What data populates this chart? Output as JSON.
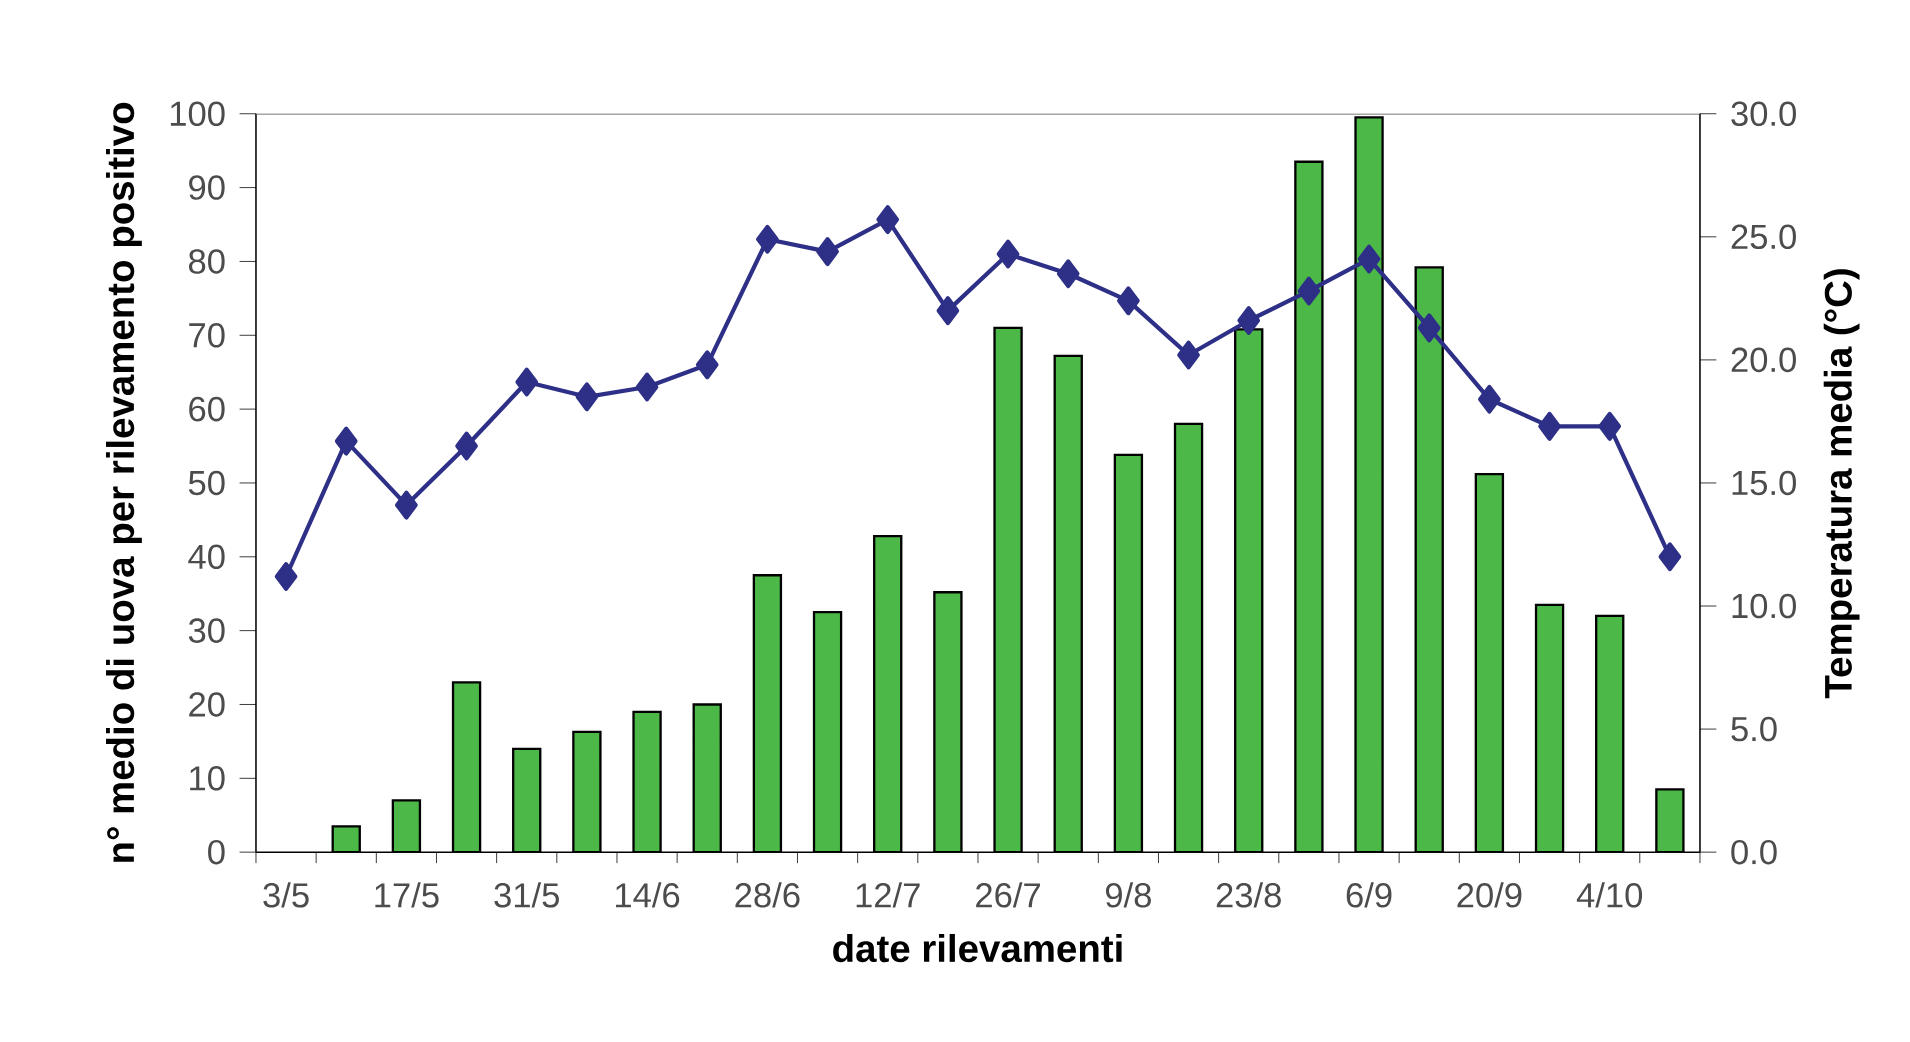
{
  "chart_data": {
    "type": "bar",
    "xlabel": "date rilevamenti",
    "ylabel": "n° medio di uova per rilevamento positivo",
    "y2label": "Temperatura media (°C)",
    "categories": [
      "3/5",
      null,
      "17/5",
      null,
      "31/5",
      null,
      "14/6",
      null,
      "28/6",
      null,
      "12/7",
      null,
      "26/7",
      null,
      "9/8",
      null,
      "23/8",
      null,
      "6/9",
      null,
      "20/9",
      null,
      "4/10",
      null
    ],
    "series": [
      {
        "color": "#4cb848",
        "values": [
          null,
          3.5,
          7,
          23,
          14,
          16.3,
          19,
          20,
          37.5,
          32.5,
          42.8,
          35.2,
          71,
          67.2,
          53.8,
          58,
          70.8,
          93.5,
          99.5,
          79.2,
          51.2,
          33.5,
          32,
          8.5
        ]
      },
      {
        "type": "line",
        "axis": "y2",
        "color": "#2e2f86",
        "marker": "diamond",
        "values": [
          11.2,
          16.7,
          14.1,
          16.5,
          19.1,
          18.5,
          18.9,
          19.8,
          24.9,
          24.4,
          25.7,
          22.0,
          24.3,
          23.5,
          22.4,
          20.2,
          21.6,
          22.8,
          24.1,
          21.3,
          18.4,
          17.3,
          17.3,
          12.0
        ]
      }
    ],
    "ylim": [
      0,
      100
    ],
    "yticks": [
      0,
      10,
      20,
      30,
      40,
      50,
      60,
      70,
      80,
      90,
      100
    ],
    "y2lim": [
      0,
      30
    ],
    "y2ticks": [
      {
        "value": 0,
        "label": "0.0"
      },
      {
        "value": 5,
        "label": "5.0"
      },
      {
        "value": 10,
        "label": "10.0"
      },
      {
        "value": 15,
        "label": "15.0"
      },
      {
        "value": 20,
        "label": "20.0"
      },
      {
        "value": 25,
        "label": "25.0"
      },
      {
        "value": 30,
        "label": "30.0"
      }
    ],
    "grid": false
  }
}
